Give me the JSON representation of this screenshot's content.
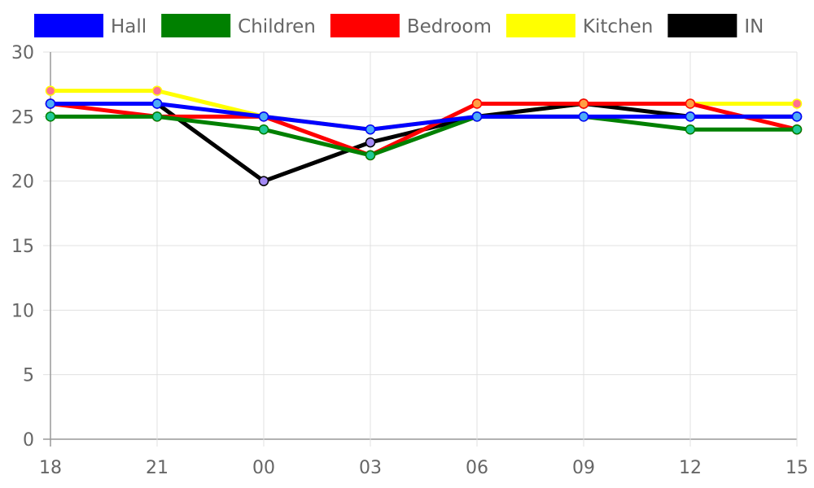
{
  "chart_data": {
    "type": "line",
    "categories": [
      "18",
      "21",
      "00",
      "03",
      "06",
      "09",
      "12",
      "15"
    ],
    "ylim": [
      0,
      30
    ],
    "yticks": [
      0,
      5,
      10,
      15,
      20,
      25,
      30
    ],
    "grid": true,
    "legend_position": "top",
    "series": [
      {
        "name": "Kitchen",
        "color": "#ffff00",
        "marker": "#ff6f91",
        "values": [
          27,
          27,
          25,
          24,
          25,
          26,
          26,
          26
        ]
      },
      {
        "name": "IN",
        "color": "#000000",
        "marker": "#a389f4",
        "values": [
          26,
          26,
          20,
          23,
          25,
          26,
          25,
          25
        ]
      },
      {
        "name": "Bedroom",
        "color": "#ff0000",
        "marker": "#ff9f43",
        "values": [
          26,
          25,
          25,
          22,
          26,
          26,
          26,
          24
        ]
      },
      {
        "name": "Children",
        "color": "#008000",
        "marker": "#20c997",
        "values": [
          25,
          25,
          24,
          22,
          25,
          25,
          24,
          24
        ]
      },
      {
        "name": "Hall",
        "color": "#0000ff",
        "marker": "#4dabf7",
        "values": [
          26,
          26,
          25,
          24,
          25,
          25,
          25,
          25
        ]
      }
    ],
    "legend_order": [
      "Hall",
      "Children",
      "Bedroom",
      "Kitchen",
      "IN"
    ]
  }
}
